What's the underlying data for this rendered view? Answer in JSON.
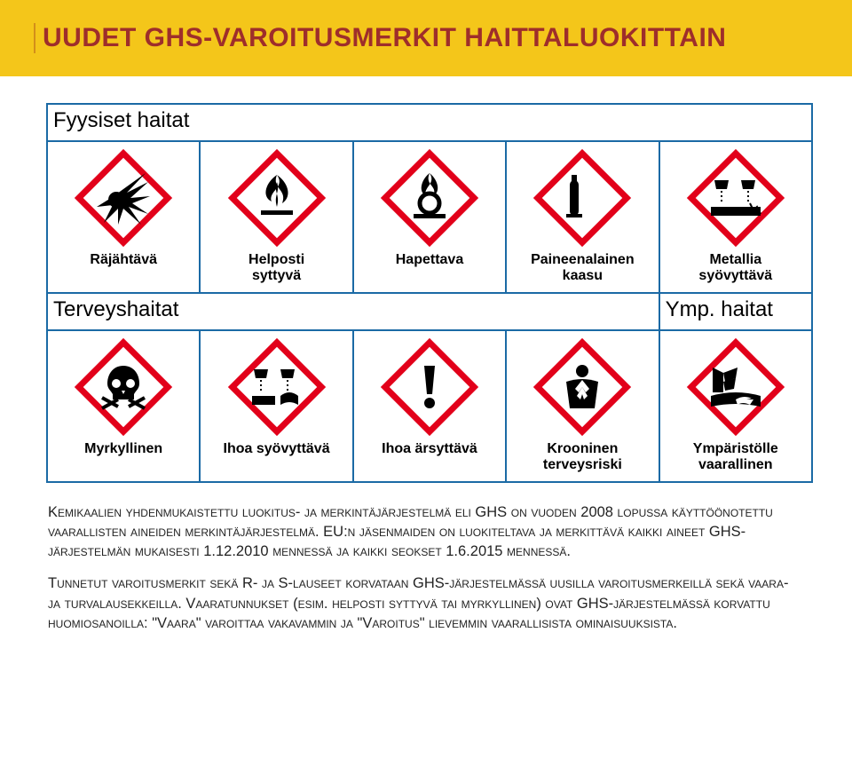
{
  "colors": {
    "header_band": "#f4c61a",
    "title_color": "#9e2e2b",
    "table_border": "#1b6aa5",
    "hazard_border": "#e2001a",
    "page_bg": "#ffffff",
    "text": "#000000"
  },
  "title": "UUDET GHS-VAROITUSMERKIT HAITTALUOKITTAIN",
  "categories": {
    "physical": "Fyysiset haitat",
    "health": "Terveyshaitat",
    "env": "Ymp. haitat"
  },
  "pictos": {
    "physical": [
      {
        "icon": "explosive",
        "label": "Räjähtävä"
      },
      {
        "icon": "flame",
        "label": "Helposti\nsyttyvä"
      },
      {
        "icon": "flame-over-circle",
        "label": "Hapettava"
      },
      {
        "icon": "gas-cylinder",
        "label": "Paineenalainen\nkaasu"
      },
      {
        "icon": "corrode-metal",
        "label": "Metallia\nsyövyttävä"
      }
    ],
    "health_env": [
      {
        "icon": "skull",
        "label": "Myrkyllinen"
      },
      {
        "icon": "corrode-skin",
        "label": "Ihoa syövyttävä"
      },
      {
        "icon": "exclaim",
        "label": "Ihoa ärsyttävä"
      },
      {
        "icon": "health-hazard",
        "label": "Krooninen\nterveysriski"
      },
      {
        "icon": "environment",
        "label": "Ympäristölle\nvaarallinen"
      }
    ]
  },
  "body": {
    "p1": "Kemikaalien yhdenmukaistettu luokitus- ja merkintäjärjestelmä eli GHS on vuoden 2008 lopussa käyttöönotettu vaarallisten aineiden merkintäjärjestelmä. EU:n jäsenmaiden on luokiteltava ja merkittävä kaikki aineet GHS-järjestelmän mukaisesti 1.12.2010 mennessä ja kaikki seokset 1.6.2015 mennessä.",
    "p2": "Tunnetut varoitusmerkit sekä R- ja S-lauseet korvataan GHS-järjestelmässä uusilla varoitusmerkeillä sekä vaara- ja turvalausekkeilla. Vaaratunnukset (esim. helposti syttyvä tai myrkyllinen) ovat GHS-järjestelmässä korvattu huomiosanoilla: \"Vaara\" varoittaa vakavammin ja \"Varoitus\" lievemmin vaarallisista ominaisuuksista."
  }
}
